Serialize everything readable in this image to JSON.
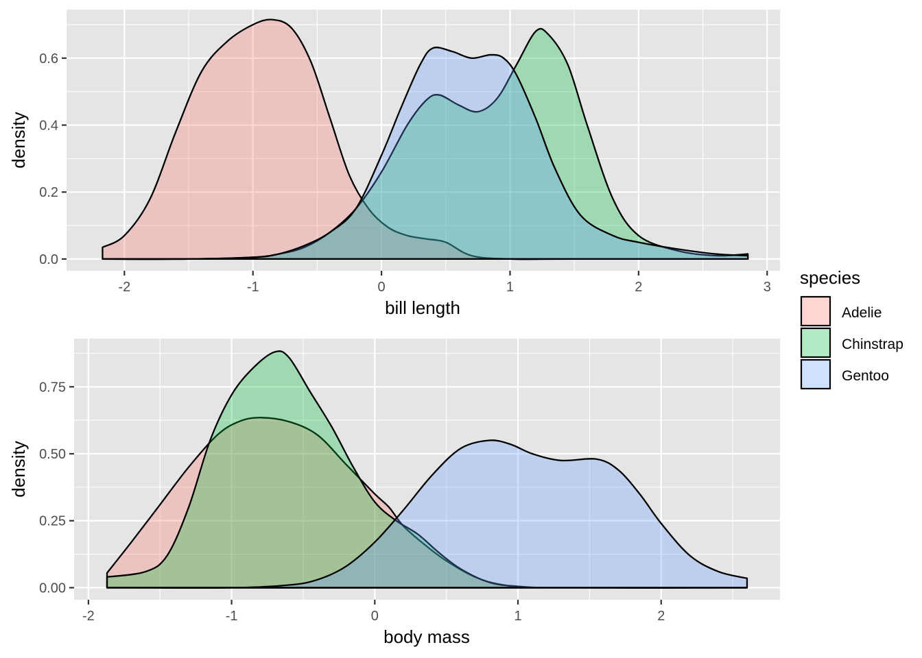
{
  "colors": {
    "Adelie": "#F8766D",
    "Chinstrap": "#00BA38",
    "Gentoo": "#619CFF",
    "fill_opacity": 0.3
  },
  "legend": {
    "title": "species",
    "position": "right",
    "items": [
      "Adelie",
      "Chinstrap",
      "Gentoo"
    ]
  },
  "chart_data": [
    {
      "type": "area",
      "xlabel": "bill length",
      "ylabel": "density",
      "xlim": [
        -2.45,
        3.1
      ],
      "ylim": [
        -0.035,
        0.745
      ],
      "xticks": [
        -2,
        -1,
        0,
        1,
        2,
        3
      ],
      "xtick_labels": [
        "-2",
        "-1",
        "0",
        "1",
        "2",
        "3"
      ],
      "yticks": [
        0.0,
        0.2,
        0.4,
        0.6
      ],
      "ytick_labels": [
        "0.0",
        "0.2",
        "0.4",
        "0.6"
      ],
      "grid": true,
      "series": [
        {
          "name": "Adelie",
          "x": [
            -2.17,
            -2.0,
            -1.8,
            -1.6,
            -1.4,
            -1.2,
            -1.0,
            -0.85,
            -0.7,
            -0.55,
            -0.4,
            -0.25,
            -0.1,
            0.05,
            0.2,
            0.35,
            0.5,
            0.7,
            1.0,
            1.5,
            2.85
          ],
          "y": [
            0.035,
            0.07,
            0.18,
            0.38,
            0.56,
            0.65,
            0.7,
            0.715,
            0.69,
            0.59,
            0.42,
            0.25,
            0.15,
            0.095,
            0.07,
            0.06,
            0.05,
            0.01,
            0.0,
            0.0,
            0.0
          ]
        },
        {
          "name": "Chinstrap",
          "x": [
            -2.17,
            -1.5,
            -1.0,
            -0.8,
            -0.6,
            -0.4,
            -0.2,
            0.0,
            0.2,
            0.35,
            0.45,
            0.6,
            0.75,
            0.9,
            1.05,
            1.2,
            1.3,
            1.45,
            1.6,
            1.8,
            2.0,
            2.3,
            2.6,
            2.85
          ],
          "y": [
            0.0,
            0.0,
            0.005,
            0.015,
            0.035,
            0.08,
            0.15,
            0.26,
            0.4,
            0.475,
            0.49,
            0.46,
            0.44,
            0.48,
            0.58,
            0.68,
            0.67,
            0.58,
            0.4,
            0.18,
            0.07,
            0.025,
            0.01,
            0.015
          ]
        },
        {
          "name": "Gentoo",
          "x": [
            -2.17,
            -1.5,
            -1.0,
            -0.8,
            -0.6,
            -0.4,
            -0.2,
            0.0,
            0.15,
            0.3,
            0.4,
            0.55,
            0.7,
            0.85,
            0.95,
            1.05,
            1.2,
            1.35,
            1.55,
            1.8,
            2.0,
            2.3,
            2.6,
            2.85
          ],
          "y": [
            0.0,
            0.0,
            0.005,
            0.015,
            0.04,
            0.08,
            0.15,
            0.31,
            0.45,
            0.58,
            0.63,
            0.62,
            0.6,
            0.61,
            0.6,
            0.55,
            0.42,
            0.27,
            0.13,
            0.07,
            0.05,
            0.03,
            0.015,
            0.01
          ]
        }
      ]
    },
    {
      "type": "area",
      "xlabel": "body mass",
      "ylabel": "density",
      "xlim": [
        -2.1,
        2.83
      ],
      "ylim": [
        -0.045,
        0.93
      ],
      "xticks": [
        -2,
        -1,
        0,
        1,
        2
      ],
      "xtick_labels": [
        "-2",
        "-1",
        "0",
        "1",
        "2"
      ],
      "yticks": [
        0.0,
        0.25,
        0.5,
        0.75
      ],
      "ytick_labels": [
        "0.00",
        "0.25",
        "0.50",
        "0.75"
      ],
      "grid": true,
      "series": [
        {
          "name": "Adelie",
          "x": [
            -1.87,
            -1.7,
            -1.5,
            -1.3,
            -1.1,
            -0.95,
            -0.8,
            -0.6,
            -0.4,
            -0.2,
            0.0,
            0.1,
            0.2,
            0.35,
            0.5,
            0.7,
            0.9,
            1.2,
            2.6
          ],
          "y": [
            0.055,
            0.17,
            0.31,
            0.45,
            0.57,
            0.62,
            0.635,
            0.62,
            0.57,
            0.46,
            0.35,
            0.3,
            0.23,
            0.16,
            0.1,
            0.04,
            0.01,
            0.0,
            0.0
          ]
        },
        {
          "name": "Chinstrap",
          "x": [
            -1.87,
            -1.6,
            -1.45,
            -1.3,
            -1.15,
            -1.0,
            -0.85,
            -0.7,
            -0.6,
            -0.45,
            -0.3,
            -0.15,
            0.0,
            0.15,
            0.3,
            0.45,
            0.6,
            0.8,
            1.0,
            1.3,
            2.6
          ],
          "y": [
            0.04,
            0.06,
            0.12,
            0.3,
            0.55,
            0.72,
            0.82,
            0.88,
            0.86,
            0.73,
            0.6,
            0.45,
            0.32,
            0.25,
            0.2,
            0.13,
            0.07,
            0.02,
            0.005,
            0.0,
            0.0
          ]
        },
        {
          "name": "Gentoo",
          "x": [
            -1.87,
            -1.0,
            -0.6,
            -0.4,
            -0.2,
            0.0,
            0.2,
            0.4,
            0.6,
            0.8,
            0.95,
            1.1,
            1.3,
            1.55,
            1.7,
            1.85,
            2.0,
            2.2,
            2.4,
            2.6
          ],
          "y": [
            0.0,
            0.0,
            0.01,
            0.03,
            0.08,
            0.17,
            0.29,
            0.42,
            0.52,
            0.55,
            0.535,
            0.5,
            0.475,
            0.48,
            0.44,
            0.35,
            0.24,
            0.12,
            0.06,
            0.035
          ]
        }
      ]
    }
  ]
}
